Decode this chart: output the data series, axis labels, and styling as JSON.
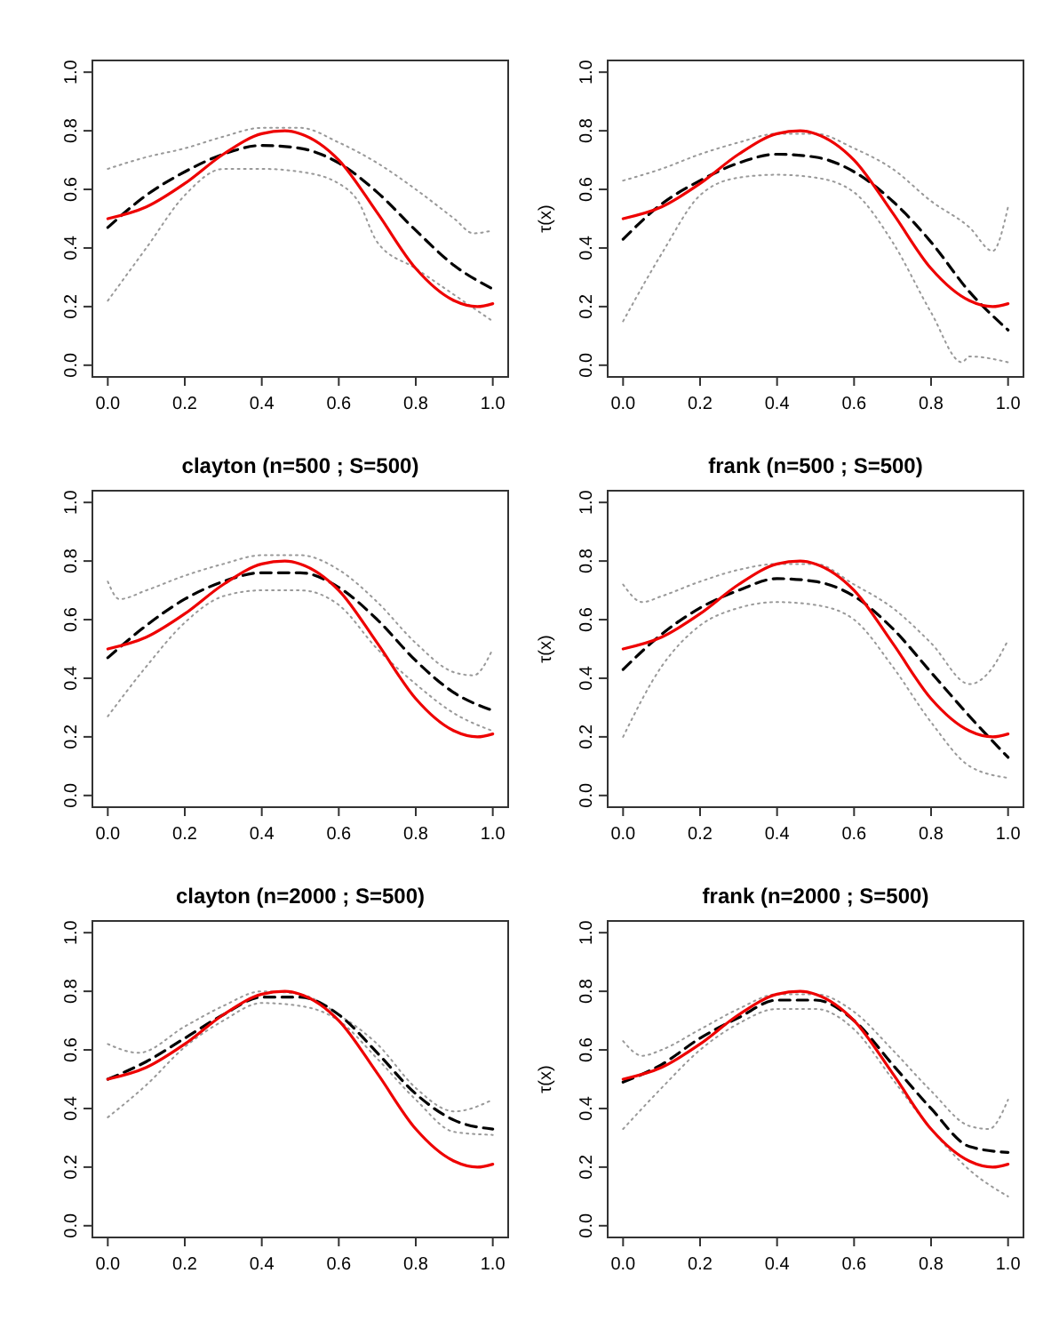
{
  "chart_data": [
    {
      "type": "line",
      "xlim": [
        -0.04,
        1.04
      ],
      "ylim": [
        -0.04,
        1.04
      ],
      "xticks": [
        {
          "value": 0,
          "label": "0.0"
        },
        {
          "value": 0.2,
          "label": "0.2"
        },
        {
          "value": 0.4,
          "label": "0.4"
        },
        {
          "value": 0.6,
          "label": "0.6"
        },
        {
          "value": 0.8,
          "label": "0.8"
        },
        {
          "value": 1,
          "label": "1.0"
        }
      ],
      "yticks": [
        {
          "value": 0,
          "label": "0.0"
        },
        {
          "value": 0.2,
          "label": "0.2"
        },
        {
          "value": 0.4,
          "label": "0.4"
        },
        {
          "value": 0.6,
          "label": "0.6"
        },
        {
          "value": 0.8,
          "label": "0.8"
        },
        {
          "value": 1,
          "label": "1.0"
        }
      ],
      "grid": false,
      "marker": "none",
      "series": [
        {
          "color": "#999999",
          "line_style": "dotted",
          "x": [
            0,
            0.1,
            0.2,
            0.3,
            0.4,
            0.5,
            0.6,
            0.7,
            0.8,
            0.9,
            0.95,
            1
          ],
          "values": [
            0.67,
            0.71,
            0.74,
            0.78,
            0.81,
            0.81,
            0.76,
            0.69,
            0.6,
            0.5,
            0.45,
            0.46
          ]
        },
        {
          "color": "#999999",
          "line_style": "dotted",
          "x": [
            0,
            0.1,
            0.2,
            0.3,
            0.4,
            0.5,
            0.6,
            0.65,
            0.7,
            0.8,
            0.9,
            1
          ],
          "values": [
            0.22,
            0.4,
            0.58,
            0.67,
            0.67,
            0.66,
            0.62,
            0.56,
            0.42,
            0.33,
            0.24,
            0.15
          ]
        },
        {
          "color": "#000000",
          "line_style": "dashed",
          "x": [
            0,
            0.1,
            0.2,
            0.3,
            0.4,
            0.5,
            0.6,
            0.7,
            0.8,
            0.9,
            1
          ],
          "values": [
            0.47,
            0.58,
            0.66,
            0.72,
            0.75,
            0.74,
            0.69,
            0.59,
            0.46,
            0.34,
            0.26
          ]
        },
        {
          "color": "#ee0000",
          "line_style": "solid",
          "x": [
            0,
            0.1,
            0.2,
            0.3,
            0.4,
            0.46,
            0.5,
            0.6,
            0.7,
            0.8,
            0.9,
            0.96,
            1
          ],
          "values": [
            0.5,
            0.54,
            0.62,
            0.72,
            0.79,
            0.8,
            0.79,
            0.7,
            0.52,
            0.33,
            0.22,
            0.2,
            0.21
          ]
        }
      ]
    },
    {
      "type": "line",
      "ylabel": "τ(x)",
      "xlim": [
        -0.04,
        1.04
      ],
      "ylim": [
        -0.04,
        1.04
      ],
      "xticks": [
        {
          "value": 0,
          "label": "0.0"
        },
        {
          "value": 0.2,
          "label": "0.2"
        },
        {
          "value": 0.4,
          "label": "0.4"
        },
        {
          "value": 0.6,
          "label": "0.6"
        },
        {
          "value": 0.8,
          "label": "0.8"
        },
        {
          "value": 1,
          "label": "1.0"
        }
      ],
      "yticks": [
        {
          "value": 0,
          "label": "0.0"
        },
        {
          "value": 0.2,
          "label": "0.2"
        },
        {
          "value": 0.4,
          "label": "0.4"
        },
        {
          "value": 0.6,
          "label": "0.6"
        },
        {
          "value": 0.8,
          "label": "0.8"
        },
        {
          "value": 1,
          "label": "1.0"
        }
      ],
      "grid": false,
      "marker": "none",
      "series": [
        {
          "color": "#999999",
          "line_style": "dotted",
          "x": [
            0,
            0.1,
            0.2,
            0.3,
            0.4,
            0.5,
            0.6,
            0.7,
            0.8,
            0.9,
            0.96,
            1
          ],
          "values": [
            0.63,
            0.67,
            0.72,
            0.76,
            0.79,
            0.79,
            0.74,
            0.67,
            0.56,
            0.47,
            0.39,
            0.54
          ]
        },
        {
          "color": "#999999",
          "line_style": "dotted",
          "x": [
            0,
            0.1,
            0.2,
            0.3,
            0.4,
            0.5,
            0.6,
            0.7,
            0.8,
            0.88,
            0.9,
            1
          ],
          "values": [
            0.15,
            0.38,
            0.58,
            0.64,
            0.65,
            0.64,
            0.59,
            0.42,
            0.18,
            0.01,
            0.03,
            0.01
          ]
        },
        {
          "color": "#000000",
          "line_style": "dashed",
          "x": [
            0,
            0.1,
            0.2,
            0.3,
            0.4,
            0.5,
            0.6,
            0.7,
            0.8,
            0.9,
            1
          ],
          "values": [
            0.43,
            0.55,
            0.63,
            0.69,
            0.72,
            0.71,
            0.66,
            0.56,
            0.42,
            0.25,
            0.12
          ]
        },
        {
          "color": "#ee0000",
          "line_style": "solid",
          "x": [
            0,
            0.1,
            0.2,
            0.3,
            0.4,
            0.46,
            0.5,
            0.6,
            0.7,
            0.8,
            0.9,
            0.96,
            1
          ],
          "values": [
            0.5,
            0.54,
            0.62,
            0.72,
            0.79,
            0.8,
            0.79,
            0.7,
            0.52,
            0.33,
            0.22,
            0.2,
            0.21
          ]
        }
      ]
    },
    {
      "type": "line",
      "title": "clayton (n=500 ; S=500)",
      "xlim": [
        -0.04,
        1.04
      ],
      "ylim": [
        -0.04,
        1.04
      ],
      "xticks": [
        {
          "value": 0,
          "label": "0.0"
        },
        {
          "value": 0.2,
          "label": "0.2"
        },
        {
          "value": 0.4,
          "label": "0.4"
        },
        {
          "value": 0.6,
          "label": "0.6"
        },
        {
          "value": 0.8,
          "label": "0.8"
        },
        {
          "value": 1,
          "label": "1.0"
        }
      ],
      "yticks": [
        {
          "value": 0,
          "label": "0.0"
        },
        {
          "value": 0.2,
          "label": "0.2"
        },
        {
          "value": 0.4,
          "label": "0.4"
        },
        {
          "value": 0.6,
          "label": "0.6"
        },
        {
          "value": 0.8,
          "label": "0.8"
        },
        {
          "value": 1,
          "label": "1.0"
        }
      ],
      "grid": false,
      "marker": "none",
      "series": [
        {
          "color": "#999999",
          "line_style": "dotted",
          "x": [
            0,
            0.03,
            0.1,
            0.2,
            0.3,
            0.4,
            0.5,
            0.6,
            0.7,
            0.8,
            0.9,
            0.95,
            1
          ],
          "values": [
            0.73,
            0.67,
            0.7,
            0.75,
            0.79,
            0.82,
            0.82,
            0.77,
            0.66,
            0.52,
            0.42,
            0.41,
            0.5
          ]
        },
        {
          "color": "#999999",
          "line_style": "dotted",
          "x": [
            0,
            0.1,
            0.2,
            0.3,
            0.4,
            0.5,
            0.6,
            0.7,
            0.8,
            0.9,
            1
          ],
          "values": [
            0.27,
            0.44,
            0.59,
            0.68,
            0.7,
            0.7,
            0.65,
            0.5,
            0.38,
            0.28,
            0.22
          ]
        },
        {
          "color": "#000000",
          "line_style": "dashed",
          "x": [
            0,
            0.1,
            0.2,
            0.3,
            0.4,
            0.5,
            0.6,
            0.7,
            0.8,
            0.9,
            1
          ],
          "values": [
            0.47,
            0.58,
            0.67,
            0.73,
            0.76,
            0.76,
            0.71,
            0.6,
            0.46,
            0.35,
            0.29
          ]
        },
        {
          "color": "#ee0000",
          "line_style": "solid",
          "x": [
            0,
            0.1,
            0.2,
            0.3,
            0.4,
            0.46,
            0.5,
            0.6,
            0.7,
            0.8,
            0.9,
            0.96,
            1
          ],
          "values": [
            0.5,
            0.54,
            0.62,
            0.72,
            0.79,
            0.8,
            0.79,
            0.7,
            0.52,
            0.33,
            0.22,
            0.2,
            0.21
          ]
        }
      ]
    },
    {
      "type": "line",
      "title": "frank (n=500 ; S=500)",
      "ylabel": "τ(x)",
      "xlim": [
        -0.04,
        1.04
      ],
      "ylim": [
        -0.04,
        1.04
      ],
      "xticks": [
        {
          "value": 0,
          "label": "0.0"
        },
        {
          "value": 0.2,
          "label": "0.2"
        },
        {
          "value": 0.4,
          "label": "0.4"
        },
        {
          "value": 0.6,
          "label": "0.6"
        },
        {
          "value": 0.8,
          "label": "0.8"
        },
        {
          "value": 1,
          "label": "1.0"
        }
      ],
      "yticks": [
        {
          "value": 0,
          "label": "0.0"
        },
        {
          "value": 0.2,
          "label": "0.2"
        },
        {
          "value": 0.4,
          "label": "0.4"
        },
        {
          "value": 0.6,
          "label": "0.6"
        },
        {
          "value": 0.8,
          "label": "0.8"
        },
        {
          "value": 1,
          "label": "1.0"
        }
      ],
      "grid": false,
      "marker": "none",
      "series": [
        {
          "color": "#999999",
          "line_style": "dotted",
          "x": [
            0,
            0.05,
            0.1,
            0.2,
            0.3,
            0.4,
            0.5,
            0.6,
            0.7,
            0.8,
            0.9,
            0.95,
            1
          ],
          "values": [
            0.72,
            0.66,
            0.68,
            0.73,
            0.77,
            0.79,
            0.79,
            0.72,
            0.64,
            0.52,
            0.38,
            0.42,
            0.53
          ]
        },
        {
          "color": "#999999",
          "line_style": "dotted",
          "x": [
            0,
            0.1,
            0.2,
            0.3,
            0.4,
            0.5,
            0.6,
            0.7,
            0.8,
            0.9,
            1
          ],
          "values": [
            0.2,
            0.44,
            0.58,
            0.64,
            0.66,
            0.65,
            0.6,
            0.44,
            0.25,
            0.1,
            0.06
          ]
        },
        {
          "color": "#000000",
          "line_style": "dashed",
          "x": [
            0,
            0.1,
            0.2,
            0.3,
            0.4,
            0.5,
            0.6,
            0.7,
            0.8,
            0.9,
            1
          ],
          "values": [
            0.43,
            0.55,
            0.64,
            0.7,
            0.74,
            0.73,
            0.68,
            0.57,
            0.42,
            0.27,
            0.13
          ]
        },
        {
          "color": "#ee0000",
          "line_style": "solid",
          "x": [
            0,
            0.1,
            0.2,
            0.3,
            0.4,
            0.46,
            0.5,
            0.6,
            0.7,
            0.8,
            0.9,
            0.96,
            1
          ],
          "values": [
            0.5,
            0.54,
            0.62,
            0.72,
            0.79,
            0.8,
            0.79,
            0.7,
            0.52,
            0.33,
            0.22,
            0.2,
            0.21
          ]
        }
      ]
    },
    {
      "type": "line",
      "title": "clayton (n=2000 ; S=500)",
      "xlim": [
        -0.04,
        1.04
      ],
      "ylim": [
        -0.04,
        1.04
      ],
      "xticks": [
        {
          "value": 0,
          "label": "0.0"
        },
        {
          "value": 0.2,
          "label": "0.2"
        },
        {
          "value": 0.4,
          "label": "0.4"
        },
        {
          "value": 0.6,
          "label": "0.6"
        },
        {
          "value": 0.8,
          "label": "0.8"
        },
        {
          "value": 1,
          "label": "1.0"
        }
      ],
      "yticks": [
        {
          "value": 0,
          "label": "0.0"
        },
        {
          "value": 0.2,
          "label": "0.2"
        },
        {
          "value": 0.4,
          "label": "0.4"
        },
        {
          "value": 0.6,
          "label": "0.6"
        },
        {
          "value": 0.8,
          "label": "0.8"
        },
        {
          "value": 1,
          "label": "1.0"
        }
      ],
      "grid": false,
      "marker": "none",
      "series": [
        {
          "color": "#999999",
          "line_style": "dotted",
          "x": [
            0,
            0.08,
            0.2,
            0.3,
            0.4,
            0.5,
            0.6,
            0.7,
            0.8,
            0.9,
            1
          ],
          "values": [
            0.62,
            0.59,
            0.68,
            0.75,
            0.8,
            0.79,
            0.72,
            0.62,
            0.47,
            0.39,
            0.43
          ]
        },
        {
          "color": "#999999",
          "line_style": "dotted",
          "x": [
            0,
            0.1,
            0.2,
            0.3,
            0.4,
            0.5,
            0.6,
            0.7,
            0.8,
            0.9,
            1
          ],
          "values": [
            0.37,
            0.48,
            0.61,
            0.7,
            0.76,
            0.75,
            0.7,
            0.57,
            0.43,
            0.32,
            0.31
          ]
        },
        {
          "color": "#000000",
          "line_style": "dashed",
          "x": [
            0,
            0.1,
            0.2,
            0.3,
            0.4,
            0.5,
            0.6,
            0.7,
            0.8,
            0.9,
            1
          ],
          "values": [
            0.5,
            0.56,
            0.64,
            0.72,
            0.78,
            0.78,
            0.72,
            0.59,
            0.45,
            0.36,
            0.33
          ]
        },
        {
          "color": "#ee0000",
          "line_style": "solid",
          "x": [
            0,
            0.1,
            0.2,
            0.3,
            0.4,
            0.46,
            0.5,
            0.6,
            0.7,
            0.8,
            0.9,
            0.96,
            1
          ],
          "values": [
            0.5,
            0.54,
            0.62,
            0.72,
            0.79,
            0.8,
            0.79,
            0.7,
            0.52,
            0.33,
            0.22,
            0.2,
            0.21
          ]
        }
      ]
    },
    {
      "type": "line",
      "title": "frank (n=2000 ; S=500)",
      "ylabel": "τ(x)",
      "xlim": [
        -0.04,
        1.04
      ],
      "ylim": [
        -0.04,
        1.04
      ],
      "xticks": [
        {
          "value": 0,
          "label": "0.0"
        },
        {
          "value": 0.2,
          "label": "0.2"
        },
        {
          "value": 0.4,
          "label": "0.4"
        },
        {
          "value": 0.6,
          "label": "0.6"
        },
        {
          "value": 0.8,
          "label": "0.8"
        },
        {
          "value": 1,
          "label": "1.0"
        }
      ],
      "yticks": [
        {
          "value": 0,
          "label": "0.0"
        },
        {
          "value": 0.2,
          "label": "0.2"
        },
        {
          "value": 0.4,
          "label": "0.4"
        },
        {
          "value": 0.6,
          "label": "0.6"
        },
        {
          "value": 0.8,
          "label": "0.8"
        },
        {
          "value": 1,
          "label": "1.0"
        }
      ],
      "grid": false,
      "marker": "none",
      "series": [
        {
          "color": "#999999",
          "line_style": "dotted",
          "x": [
            0,
            0.05,
            0.1,
            0.2,
            0.3,
            0.4,
            0.5,
            0.6,
            0.7,
            0.8,
            0.9,
            0.95,
            1
          ],
          "values": [
            0.63,
            0.58,
            0.6,
            0.67,
            0.74,
            0.79,
            0.79,
            0.73,
            0.6,
            0.46,
            0.34,
            0.33,
            0.43
          ]
        },
        {
          "color": "#999999",
          "line_style": "dotted",
          "x": [
            0,
            0.1,
            0.2,
            0.3,
            0.4,
            0.5,
            0.6,
            0.7,
            0.8,
            0.9,
            1
          ],
          "values": [
            0.33,
            0.47,
            0.6,
            0.69,
            0.74,
            0.74,
            0.67,
            0.5,
            0.33,
            0.19,
            0.1
          ]
        },
        {
          "color": "#000000",
          "line_style": "dashed",
          "x": [
            0,
            0.1,
            0.2,
            0.3,
            0.4,
            0.5,
            0.6,
            0.7,
            0.8,
            0.9,
            1
          ],
          "values": [
            0.49,
            0.55,
            0.64,
            0.71,
            0.77,
            0.77,
            0.7,
            0.55,
            0.4,
            0.27,
            0.25
          ]
        },
        {
          "color": "#ee0000",
          "line_style": "solid",
          "x": [
            0,
            0.1,
            0.2,
            0.3,
            0.4,
            0.46,
            0.5,
            0.6,
            0.7,
            0.8,
            0.9,
            0.96,
            1
          ],
          "values": [
            0.5,
            0.54,
            0.62,
            0.72,
            0.79,
            0.8,
            0.79,
            0.7,
            0.52,
            0.33,
            0.22,
            0.2,
            0.21
          ]
        }
      ]
    }
  ]
}
